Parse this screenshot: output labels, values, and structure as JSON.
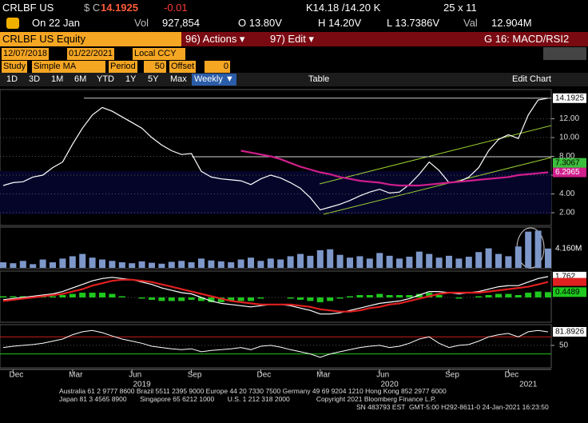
{
  "header": {
    "ticker": "CRLBF US",
    "currency": "$ C",
    "price": "14.1925",
    "change": "-0.01",
    "bid_ask": "K14.18 /14.20 K",
    "size": "25 x 11",
    "date": "On 22 Jan",
    "vol_label": "Vol",
    "vol": "927,854",
    "open": "O 13.80V",
    "high": "H 14.20V",
    "low": "L 13.7386V",
    "val_label": "Val",
    "val": "12.904M"
  },
  "toolbar": {
    "security": "CRLBF US Equity",
    "actions": "96) Actions ▾",
    "edit": "97) Edit ▾",
    "graph": "G 16: MACD/RSI2",
    "start": "12/07/2018",
    "end": "01/22/2021",
    "ccy": "Local CCY",
    "study": "Study",
    "study_type": "Simple MA",
    "period_label": "Period",
    "period": "50",
    "offset_label": "Offset",
    "offset": "0",
    "periods": [
      "1D",
      "3D",
      "1M",
      "6M",
      "YTD",
      "1Y",
      "5Y",
      "Max"
    ],
    "frequency": "Weekly ▼",
    "table": "Table",
    "edit_chart": "Edit Chart"
  },
  "chart_data": [
    {
      "type": "line",
      "categories": [
        null,
        "Dec",
        null,
        null,
        null,
        null,
        null,
        "Mar",
        null,
        null,
        null,
        null,
        null,
        "Jun",
        null,
        null,
        null,
        null,
        null,
        "Sep",
        null,
        null,
        null,
        null,
        null,
        null,
        "Dec",
        null,
        null,
        null,
        null,
        null,
        "Mar",
        null,
        null,
        null,
        null,
        null,
        "Jun",
        null,
        null,
        null,
        null,
        null,
        null,
        "Sep",
        null,
        null,
        null,
        null,
        null,
        "Dec",
        null,
        null,
        null,
        null
      ],
      "years": [
        null,
        null,
        null,
        null,
        null,
        null,
        null,
        null,
        null,
        null,
        null,
        null,
        null,
        null,
        "2019",
        null,
        null,
        null,
        null,
        null,
        null,
        null,
        null,
        null,
        null,
        null,
        null,
        null,
        null,
        null,
        null,
        null,
        null,
        null,
        null,
        null,
        null,
        null,
        null,
        "2020",
        null,
        null,
        null,
        null,
        null,
        null,
        null,
        null,
        null,
        null,
        null,
        null,
        null,
        "2021",
        null,
        null
      ],
      "series": [
        {
          "name": "Price",
          "color": "#ffffff",
          "values": [
            4.9,
            5.2,
            5.3,
            5.8,
            6.0,
            6.8,
            7.4,
            9.3,
            11.0,
            12.4,
            13.2,
            12.8,
            12.2,
            11.6,
            11.0,
            10.0,
            9.2,
            8.6,
            8.2,
            8.3,
            6.4,
            5.8,
            5.6,
            5.5,
            5.4,
            5.0,
            5.6,
            6.0,
            5.7,
            5.2,
            4.6,
            3.6,
            2.3,
            2.6,
            2.9,
            3.3,
            3.8,
            4.2,
            4.5,
            4.1,
            4.2,
            5.0,
            6.1,
            7.4,
            6.5,
            5.2,
            5.3,
            5.8,
            6.8,
            8.6,
            9.8,
            10.3,
            9.9,
            12.4,
            14.0,
            14.1925
          ]
        },
        {
          "name": "Simple MA",
          "color": "#d01e8c",
          "values": [
            null,
            null,
            null,
            null,
            null,
            null,
            null,
            null,
            null,
            null,
            null,
            null,
            null,
            null,
            null,
            null,
            null,
            null,
            null,
            null,
            null,
            null,
            null,
            null,
            8.6,
            8.4,
            8.2,
            8.0,
            7.7,
            7.3,
            6.9,
            6.6,
            6.3,
            6.1,
            5.8,
            5.6,
            5.4,
            5.3,
            5.2,
            5.0,
            4.9,
            4.9,
            4.9,
            5.0,
            5.1,
            5.2,
            5.3,
            5.4,
            5.5,
            5.6,
            5.7,
            5.8,
            6.0,
            6.1,
            6.2,
            6.2965
          ]
        }
      ],
      "marker": 7.3067,
      "marker_color": "#3cbf3c",
      "ylim": [
        0.81,
        14.6
      ],
      "yticks": [
        {
          "value": 2,
          "label": "2.00"
        },
        {
          "value": 4,
          "label": "4.00"
        },
        {
          "value": 6,
          "label": "6.00"
        },
        {
          "value": 8,
          "label": "8.00"
        },
        {
          "value": 10,
          "label": "10.00"
        },
        {
          "value": 12,
          "label": "12.00"
        }
      ],
      "grid": true
    },
    {
      "type": "bar",
      "color": "#7d97c9",
      "values": [
        1.2,
        1.0,
        1.5,
        0.8,
        1.8,
        1.2,
        2.0,
        2.5,
        3.0,
        2.2,
        1.8,
        1.5,
        1.2,
        1.0,
        1.4,
        1.1,
        0.9,
        1.3,
        1.5,
        1.2,
        2.0,
        1.6,
        1.4,
        1.2,
        1.8,
        2.2,
        1.5,
        2.0,
        1.8,
        2.5,
        3.0,
        2.6,
        3.8,
        4.0,
        2.8,
        2.2,
        2.5,
        2.0,
        3.2,
        2.6,
        2.0,
        2.4,
        3.5,
        3.0,
        2.2,
        2.6,
        2.0,
        2.4,
        3.4,
        4.2,
        3.0,
        2.5,
        4.6,
        7.8,
        8.0,
        4.16
      ],
      "value_labels": [
        null,
        null,
        null,
        null,
        null,
        null,
        null,
        null,
        null,
        null,
        null,
        null,
        null,
        null,
        null,
        null,
        null,
        null,
        null,
        null,
        null,
        null,
        null,
        null,
        null,
        null,
        null,
        null,
        null,
        null,
        null,
        null,
        null,
        null,
        null,
        null,
        null,
        null,
        null,
        null,
        null,
        null,
        null,
        null,
        null,
        null,
        null,
        null,
        null,
        null,
        null,
        null,
        null,
        null,
        null,
        "4.160M"
      ],
      "ylim": [
        0,
        8.6
      ]
    },
    {
      "type": "macd",
      "series": [
        {
          "name": "MACD",
          "color": "#ffffff",
          "values": [
            -0.2,
            -0.1,
            0.0,
            0.1,
            0.2,
            0.3,
            0.5,
            0.8,
            1.1,
            1.4,
            1.6,
            1.7,
            1.6,
            1.5,
            1.3,
            1.1,
            0.8,
            0.6,
            0.4,
            0.3,
            0.0,
            -0.3,
            -0.5,
            -0.6,
            -0.7,
            -0.8,
            -0.7,
            -0.6,
            -0.6,
            -0.7,
            -0.9,
            -1.1,
            -1.4,
            -1.4,
            -1.3,
            -1.1,
            -0.9,
            -0.7,
            -0.5,
            -0.4,
            -0.3,
            -0.1,
            0.2,
            0.5,
            0.5,
            0.4,
            0.3,
            0.4,
            0.5,
            0.7,
            0.9,
            1.0,
            1.0,
            1.3,
            1.6,
            1.762
          ]
        },
        {
          "name": "Signal",
          "color": "#e02020",
          "values": [
            -0.3,
            -0.2,
            -0.1,
            0.0,
            0.1,
            0.2,
            0.3,
            0.5,
            0.7,
            1.0,
            1.2,
            1.4,
            1.5,
            1.5,
            1.4,
            1.3,
            1.1,
            0.9,
            0.7,
            0.5,
            0.3,
            0.1,
            -0.1,
            -0.3,
            -0.4,
            -0.5,
            -0.6,
            -0.6,
            -0.6,
            -0.6,
            -0.7,
            -0.8,
            -1.0,
            -1.1,
            -1.2,
            -1.2,
            -1.1,
            -0.9,
            -0.8,
            -0.6,
            -0.5,
            -0.3,
            -0.1,
            0.1,
            0.3,
            0.4,
            0.4,
            0.4,
            0.4,
            0.5,
            0.6,
            0.7,
            0.8,
            0.9,
            1.1,
            1.31
          ]
        }
      ],
      "histogram": {
        "color": "#1ec81e",
        "values": [
          0.1,
          0.1,
          0.1,
          0.1,
          0.1,
          0.1,
          0.2,
          0.3,
          0.4,
          0.4,
          0.4,
          0.3,
          0.1,
          0.0,
          -0.1,
          -0.2,
          -0.3,
          -0.3,
          -0.3,
          -0.2,
          -0.3,
          -0.4,
          -0.4,
          -0.3,
          -0.3,
          -0.3,
          -0.1,
          0.0,
          0.0,
          -0.1,
          -0.2,
          -0.3,
          -0.4,
          -0.3,
          -0.1,
          0.1,
          0.2,
          0.2,
          0.3,
          0.2,
          0.2,
          0.2,
          0.3,
          0.4,
          0.2,
          0.0,
          -0.1,
          0.0,
          0.1,
          0.2,
          0.3,
          0.3,
          0.2,
          0.4,
          0.5,
          0.4489
        ]
      },
      "ylim": [
        -2.03,
        2.16
      ]
    },
    {
      "type": "rsi",
      "series": [
        {
          "name": "RSI",
          "color": "#ffffff",
          "values": [
            45,
            48,
            50,
            52,
            55,
            60,
            65,
            75,
            82,
            85,
            80,
            72,
            65,
            60,
            55,
            48,
            45,
            42,
            40,
            42,
            35,
            38,
            40,
            42,
            45,
            40,
            48,
            50,
            46,
            40,
            35,
            30,
            22,
            30,
            35,
            40,
            45,
            48,
            50,
            45,
            48,
            55,
            65,
            70,
            55,
            45,
            50,
            52,
            60,
            70,
            75,
            78,
            70,
            82,
            85,
            81.8926
          ]
        }
      ],
      "levels": [
        {
          "value": 70,
          "color": "#d01e1e"
        },
        {
          "value": 30,
          "color": "#1ec81e"
        }
      ],
      "ylim": [
        1,
        95
      ],
      "yticks": [
        50
      ],
      "grid": true
    }
  ],
  "footer": [
    "Australia 61 2 9777 8600 Brazil 5511 2395 9000 Europe 44 20 7330 7500 Germany 49 69 9204 1210 Hong Kong 852 2977 6000",
    "Japan 81 3 4565 8900       Singapore 65 6212 1000       U.S. 1 212 318 2000              Copyright 2021 Bloomberg Finance L.P.",
    "SN 483793 EST  GMT-5:00 H292-8611-0 24-Jan-2021 16:23:50"
  ]
}
